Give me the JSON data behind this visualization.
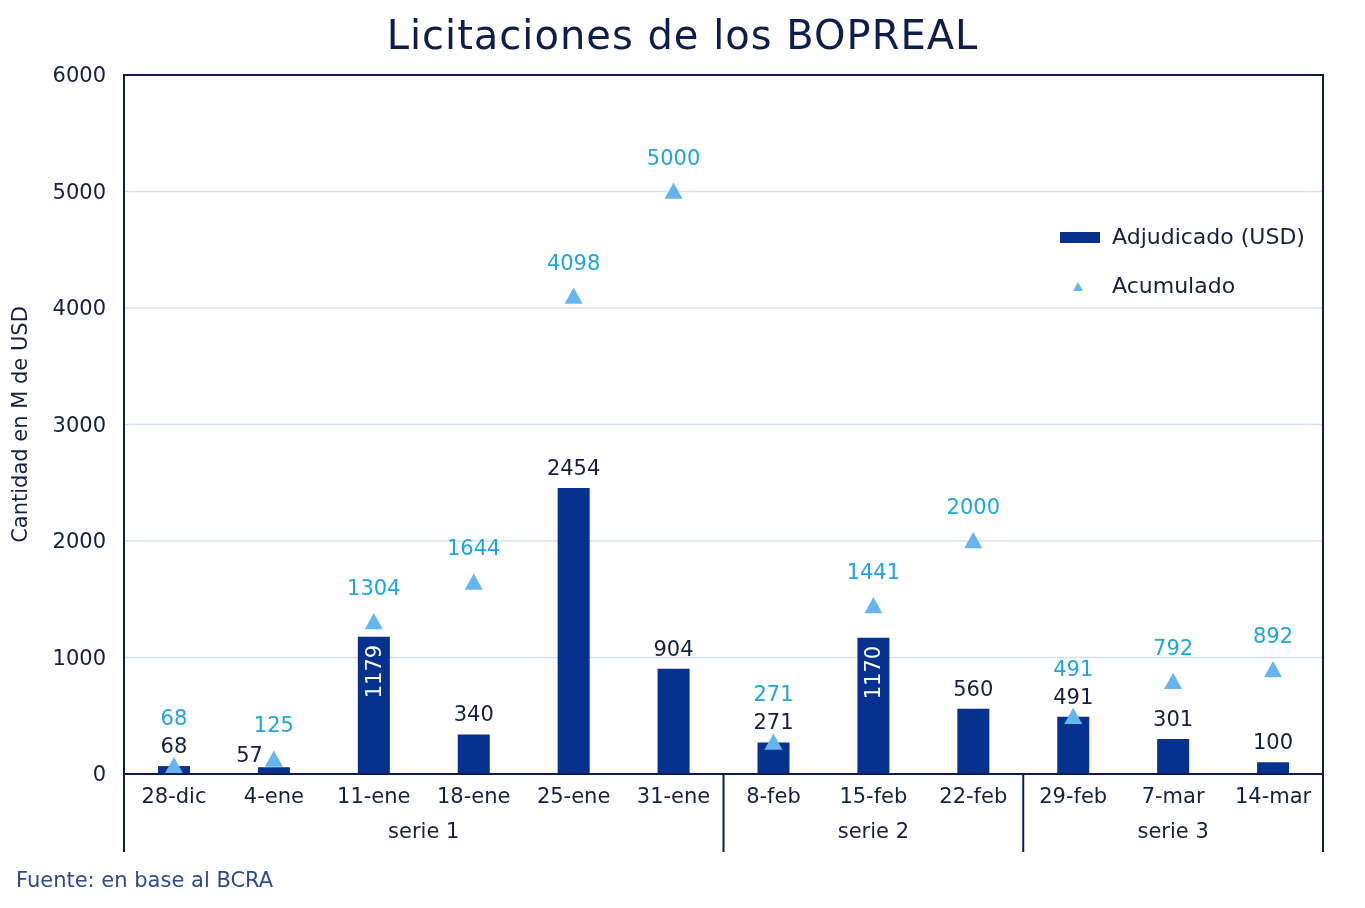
{
  "chart_data": {
    "type": "bar",
    "title": "Licitaciones de los BOPREAL",
    "ylabel": "Cantidad en M de USD",
    "categories": [
      "28-dic",
      "4-ene",
      "11-ene",
      "18-ene",
      "25-ene",
      "31-ene",
      "8-feb",
      "15-feb",
      "22-feb",
      "29-feb",
      "7-mar",
      "14-mar"
    ],
    "series": [
      {
        "name": "Adjudicado (USD)",
        "color": "#06318c",
        "values": [
          68,
          57,
          1179,
          340,
          2454,
          904,
          271,
          1170,
          560,
          491,
          301,
          100
        ]
      },
      {
        "name": "Acumulado",
        "type": "scatter",
        "color": "#64b5f0",
        "values": [
          68,
          125,
          1304,
          1644,
          4098,
          5000,
          271,
          1441,
          2000,
          491,
          792,
          892
        ]
      }
    ],
    "ylim": [
      0,
      6000
    ],
    "yticks": [
      0,
      1000,
      2000,
      3000,
      4000,
      5000,
      6000
    ],
    "grid": "y",
    "legend": "top right",
    "marker": "triangle",
    "data_labels": true,
    "annotations": [
      "serie 1",
      "serie 2",
      "serie 3",
      "Fuente: en base al BCRA"
    ]
  }
}
